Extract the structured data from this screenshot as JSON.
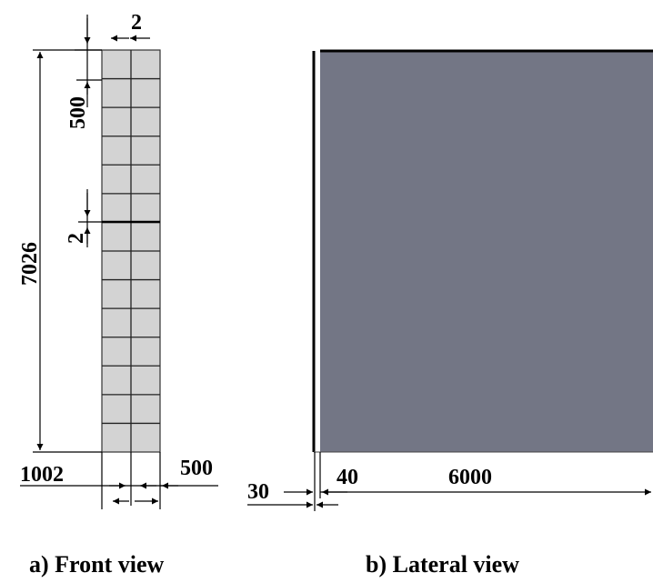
{
  "front_view": {
    "caption": "a) Front view",
    "dims": {
      "top_width": "2",
      "top_spacing": "500",
      "mid_gap": "2",
      "total_height": "7026",
      "total_width": "1002",
      "cell_width": "500"
    },
    "grid": {
      "columns": 2,
      "rows": 14
    },
    "panel_color": "#d3d3d3"
  },
  "lateral_view": {
    "caption": "b) Lateral view",
    "dims": {
      "offset": "30",
      "thickness": "40",
      "length": "6000"
    },
    "panel_color": "#737685"
  }
}
